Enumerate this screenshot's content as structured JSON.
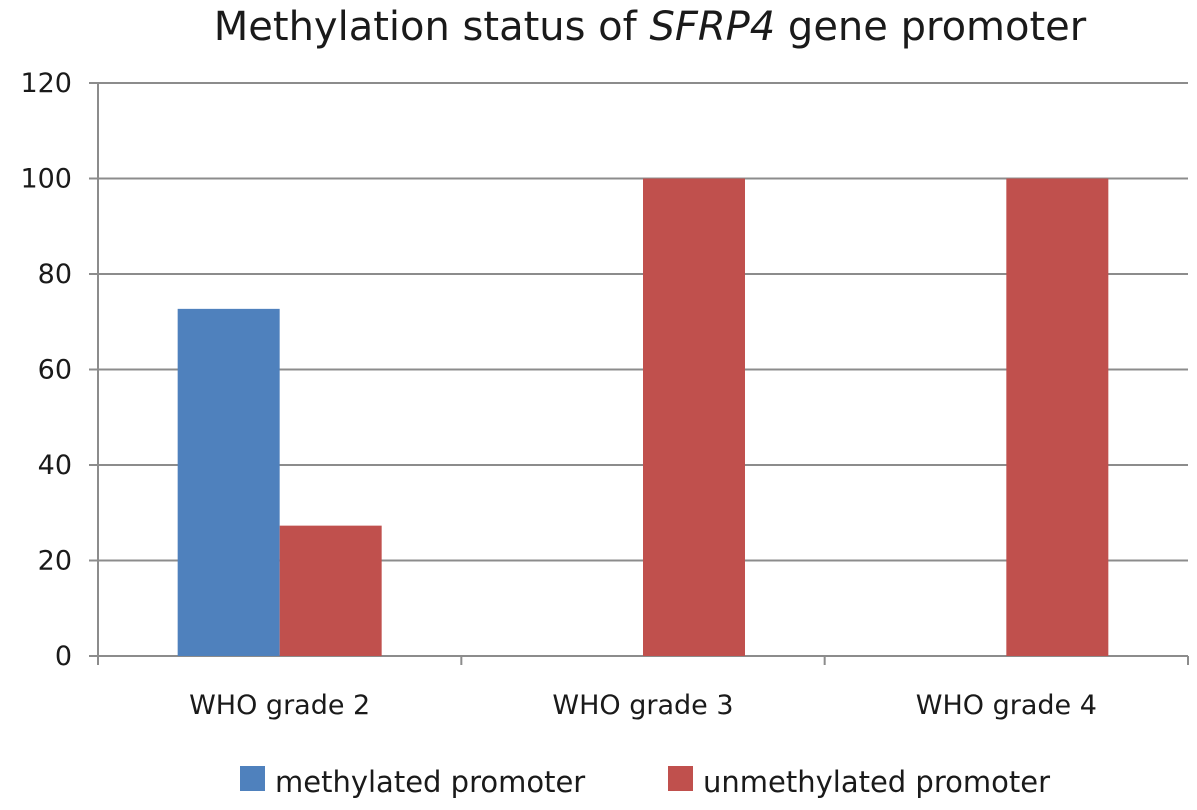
{
  "chart_data": {
    "type": "bar",
    "title_prefix": "Methylation status of ",
    "title_gene": "SFRP4",
    "title_suffix": " gene promoter",
    "categories": [
      "WHO grade 2",
      "WHO grade 3",
      "WHO grade 4"
    ],
    "series": [
      {
        "name": "methylated promoter",
        "color": "#4F81BD",
        "values": [
          72.7,
          0,
          0
        ]
      },
      {
        "name": "unmethylated promoter",
        "color": "#C0504D",
        "values": [
          27.3,
          100,
          100
        ]
      }
    ],
    "ylim": [
      0,
      120
    ],
    "yticks": [
      0,
      20,
      40,
      60,
      80,
      100,
      120
    ],
    "xlabel": "",
    "ylabel": "",
    "grid": true,
    "legend_position": "bottom"
  }
}
